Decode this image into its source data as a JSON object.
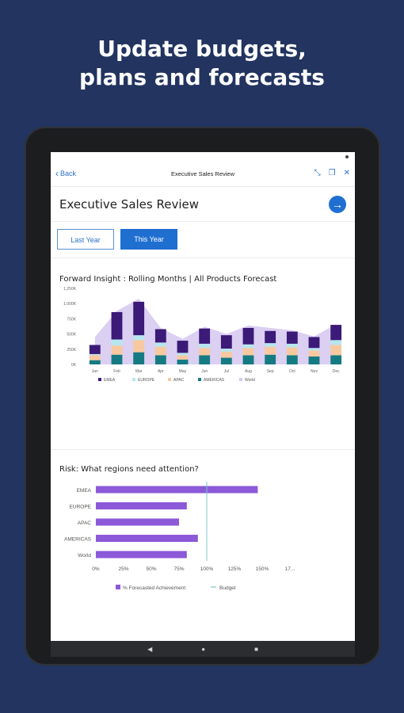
{
  "headline": {
    "line1": "Update budgets,",
    "line2": "plans and forecasts"
  },
  "appbar": {
    "back_label": "Back",
    "title": "Executive Sales Review"
  },
  "page": {
    "title": "Executive Sales Review"
  },
  "toggle": {
    "last_year": "Last Year",
    "this_year": "This Year",
    "selected": "This Year"
  },
  "colors": {
    "EMEA": "#3b1a78",
    "EUROPE": "#b7e6ee",
    "APAC": "#f8c9a0",
    "AMERICAS": "#167a82",
    "World": "#d5c7f0",
    "risk_bar": "#8c59d9",
    "budget_line": "#7cc7cf",
    "accent": "#1f6fd1",
    "background": "#22345f"
  },
  "chart1_title": "Forward Insight : Rolling Months | All Products Forecast",
  "chart2_title": "Risk: What regions need attention?",
  "chart_data": [
    {
      "type": "bar",
      "stacked": true,
      "title": "Forward Insight : Rolling Months | All Products Forecast",
      "categories": [
        "Jan",
        "Feb",
        "Mar",
        "Apr",
        "May",
        "Jun",
        "Jul",
        "Aug",
        "Sep",
        "Oct",
        "Nov",
        "Dec"
      ],
      "y_tick_labels": [
        "0K",
        "250K",
        "500K",
        "750K",
        "1,000K",
        "1,250K"
      ],
      "ylim": [
        0,
        1250000
      ],
      "series": [
        {
          "name": "AMERICAS",
          "values": [
            70000,
            160000,
            200000,
            150000,
            80000,
            150000,
            110000,
            150000,
            160000,
            150000,
            130000,
            150000
          ]
        },
        {
          "name": "APAC",
          "values": [
            80000,
            150000,
            200000,
            140000,
            70000,
            120000,
            100000,
            120000,
            130000,
            130000,
            100000,
            170000
          ]
        },
        {
          "name": "EUROPE",
          "values": [
            20000,
            100000,
            80000,
            70000,
            40000,
            70000,
            50000,
            60000,
            60000,
            60000,
            40000,
            80000
          ]
        },
        {
          "name": "EMEA",
          "values": [
            150000,
            450000,
            550000,
            220000,
            200000,
            250000,
            220000,
            270000,
            200000,
            200000,
            180000,
            250000
          ]
        }
      ],
      "area_series": {
        "name": "World",
        "values": [
          450000,
          880000,
          1080000,
          600000,
          420000,
          620000,
          500000,
          640000,
          600000,
          560000,
          460000,
          660000
        ]
      },
      "legend": [
        "EMEA",
        "EUROPE",
        "APAC",
        "AMERICAS",
        "World"
      ],
      "legend_position": "bottom",
      "grid": false
    },
    {
      "type": "bar",
      "orientation": "horizontal",
      "title": "Risk: What regions need attention?",
      "categories": [
        "EMEA",
        "EUROPE",
        "APAC",
        "AMERICAS",
        "World"
      ],
      "series": [
        {
          "name": "% Forecasted Achievement",
          "values": [
            146,
            82,
            75,
            92,
            82
          ]
        }
      ],
      "reference_line": {
        "name": "Budget",
        "value": 100
      },
      "x_tick_labels": [
        "0%",
        "25%",
        "50%",
        "75%",
        "100%",
        "125%",
        "150%",
        "17..."
      ],
      "xlim": [
        0,
        175
      ],
      "legend": [
        "% Forecasted Achievement",
        "Budget"
      ],
      "legend_position": "bottom",
      "grid": false
    }
  ],
  "navbar": {
    "back_icon": "◀",
    "home_icon": "●",
    "recents_icon": "■"
  }
}
